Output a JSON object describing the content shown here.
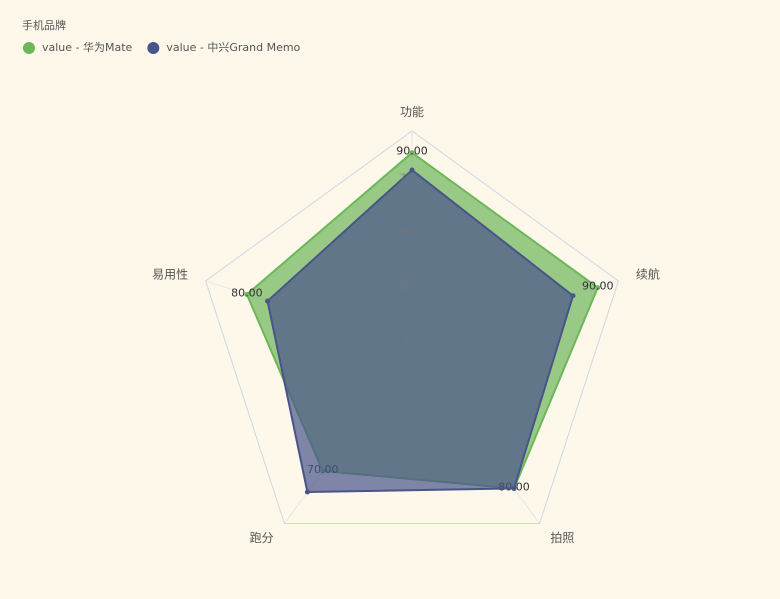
{
  "chart_data": {
    "type": "radar",
    "legend_title": "手机品牌",
    "categories": [
      "功能",
      "续航",
      "拍照",
      "跑分",
      "易用性"
    ],
    "rlim": [
      0,
      100
    ],
    "rticks": [
      0,
      25,
      50,
      75
    ],
    "series": [
      {
        "name": "value - 华为Mate",
        "color": "#6db65a",
        "values": [
          90,
          90,
          80,
          70,
          80
        ],
        "value_labels": [
          "90.00",
          "90.00",
          "80.00",
          "70.00",
          "80.00"
        ]
      },
      {
        "name": "value - 中兴Grand Memo",
        "color": "#48548a",
        "values": [
          82,
          78,
          80,
          82,
          70
        ]
      }
    ]
  }
}
